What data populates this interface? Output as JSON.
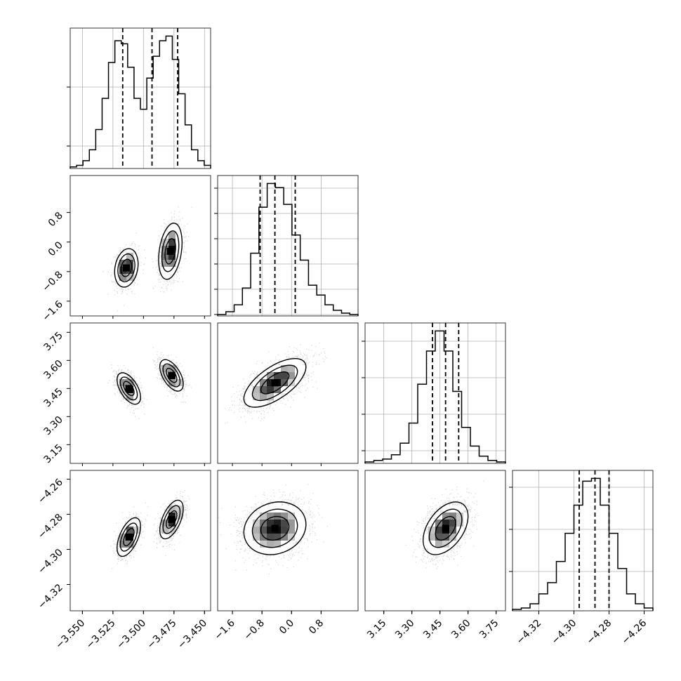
{
  "chart_data": {
    "type": "corner",
    "grid": true,
    "parameters": [
      {
        "range": [
          -3.56,
          -3.445
        ],
        "ticks": [
          -3.55,
          -3.525,
          -3.5,
          -3.475,
          -3.45
        ],
        "tick_labels": [
          "−3.550",
          "−3.525",
          "−3.500",
          "−3.475",
          "−3.450"
        ],
        "quantiles": [
          -3.517,
          -3.493,
          -3.472
        ],
        "histogram": [
          1,
          2,
          5,
          12,
          25,
          45,
          68,
          82,
          80,
          65,
          45,
          38,
          58,
          72,
          82,
          85,
          70,
          48,
          28,
          12,
          5,
          2
        ],
        "hist_ticks": [
          0.16,
          0.58
        ]
      },
      {
        "range": [
          -2.0,
          1.8
        ],
        "ticks": [
          -1.6,
          -0.8,
          0.0,
          0.8
        ],
        "tick_labels": [
          "−1.6",
          "−0.8",
          "0.0",
          "0.8"
        ],
        "quantiles": [
          -0.85,
          -0.45,
          0.1
        ],
        "histogram": [
          1,
          3,
          8,
          20,
          45,
          78,
          95,
          92,
          80,
          58,
          40,
          22,
          15,
          8,
          4,
          2,
          1
        ],
        "hist_ticks": [
          0.01,
          0.19,
          0.37,
          0.55,
          0.73,
          0.91
        ]
      },
      {
        "range": [
          3.05,
          3.8
        ],
        "ticks": [
          3.15,
          3.3,
          3.45,
          3.6,
          3.75
        ],
        "tick_labels": [
          "3.15",
          "3.30",
          "3.45",
          "3.60",
          "3.75"
        ],
        "quantiles": [
          3.41,
          3.48,
          3.55
        ],
        "histogram": [
          1,
          2,
          3,
          6,
          14,
          28,
          55,
          78,
          92,
          78,
          50,
          25,
          12,
          5,
          2,
          1
        ],
        "hist_ticks": [
          0.09,
          0.35,
          0.61,
          0.87
        ]
      },
      {
        "range": [
          -4.335,
          -4.255
        ],
        "ticks": [
          -4.32,
          -4.3,
          -4.28,
          -4.26
        ],
        "tick_labels": [
          "−4.32",
          "−4.30",
          "−4.28",
          "−4.26"
        ],
        "quantiles": [
          -4.297,
          -4.288,
          -4.28
        ],
        "histogram": [
          1,
          2,
          5,
          12,
          20,
          35,
          55,
          75,
          92,
          94,
          75,
          55,
          30,
          12,
          5,
          2
        ],
        "hist_ticks": [
          0.28,
          0.58,
          0.88
        ]
      }
    ],
    "pairs": [
      {
        "row": 1,
        "col": 0,
        "modes": [
          {
            "mx": -3.514,
            "my": -0.7,
            "sx": 0.0048,
            "sy": 0.26,
            "rho": 0.2,
            "w": 0.5
          },
          {
            "mx": -3.478,
            "my": -0.25,
            "sx": 0.0048,
            "sy": 0.38,
            "rho": 0.3,
            "w": 0.5
          }
        ]
      },
      {
        "row": 2,
        "col": 0,
        "modes": [
          {
            "mx": -3.512,
            "my": 3.45,
            "sx": 0.0048,
            "sy": 0.042,
            "rho": -0.55,
            "w": 0.5
          },
          {
            "mx": -3.477,
            "my": 3.52,
            "sx": 0.0048,
            "sy": 0.042,
            "rho": -0.55,
            "w": 0.5
          }
        ]
      },
      {
        "row": 2,
        "col": 1,
        "modes": [
          {
            "mx": -0.45,
            "my": 3.48,
            "sx": 0.42,
            "sy": 0.065,
            "rho": 0.65,
            "w": 1.0
          }
        ]
      },
      {
        "row": 3,
        "col": 0,
        "modes": [
          {
            "mx": -3.512,
            "my": -4.293,
            "sx": 0.0048,
            "sy": 0.0055,
            "rho": 0.55,
            "w": 0.5
          },
          {
            "mx": -3.477,
            "my": -4.283,
            "sx": 0.0048,
            "sy": 0.0055,
            "rho": 0.55,
            "w": 0.5
          }
        ]
      },
      {
        "row": 3,
        "col": 1,
        "modes": [
          {
            "mx": -0.45,
            "my": -4.288,
            "sx": 0.42,
            "sy": 0.0075,
            "rho": 0.15,
            "w": 1.0
          }
        ]
      },
      {
        "row": 3,
        "col": 2,
        "modes": [
          {
            "mx": 3.48,
            "my": -4.288,
            "sx": 0.06,
            "sy": 0.0075,
            "rho": 0.45,
            "w": 1.0
          }
        ]
      }
    ]
  }
}
